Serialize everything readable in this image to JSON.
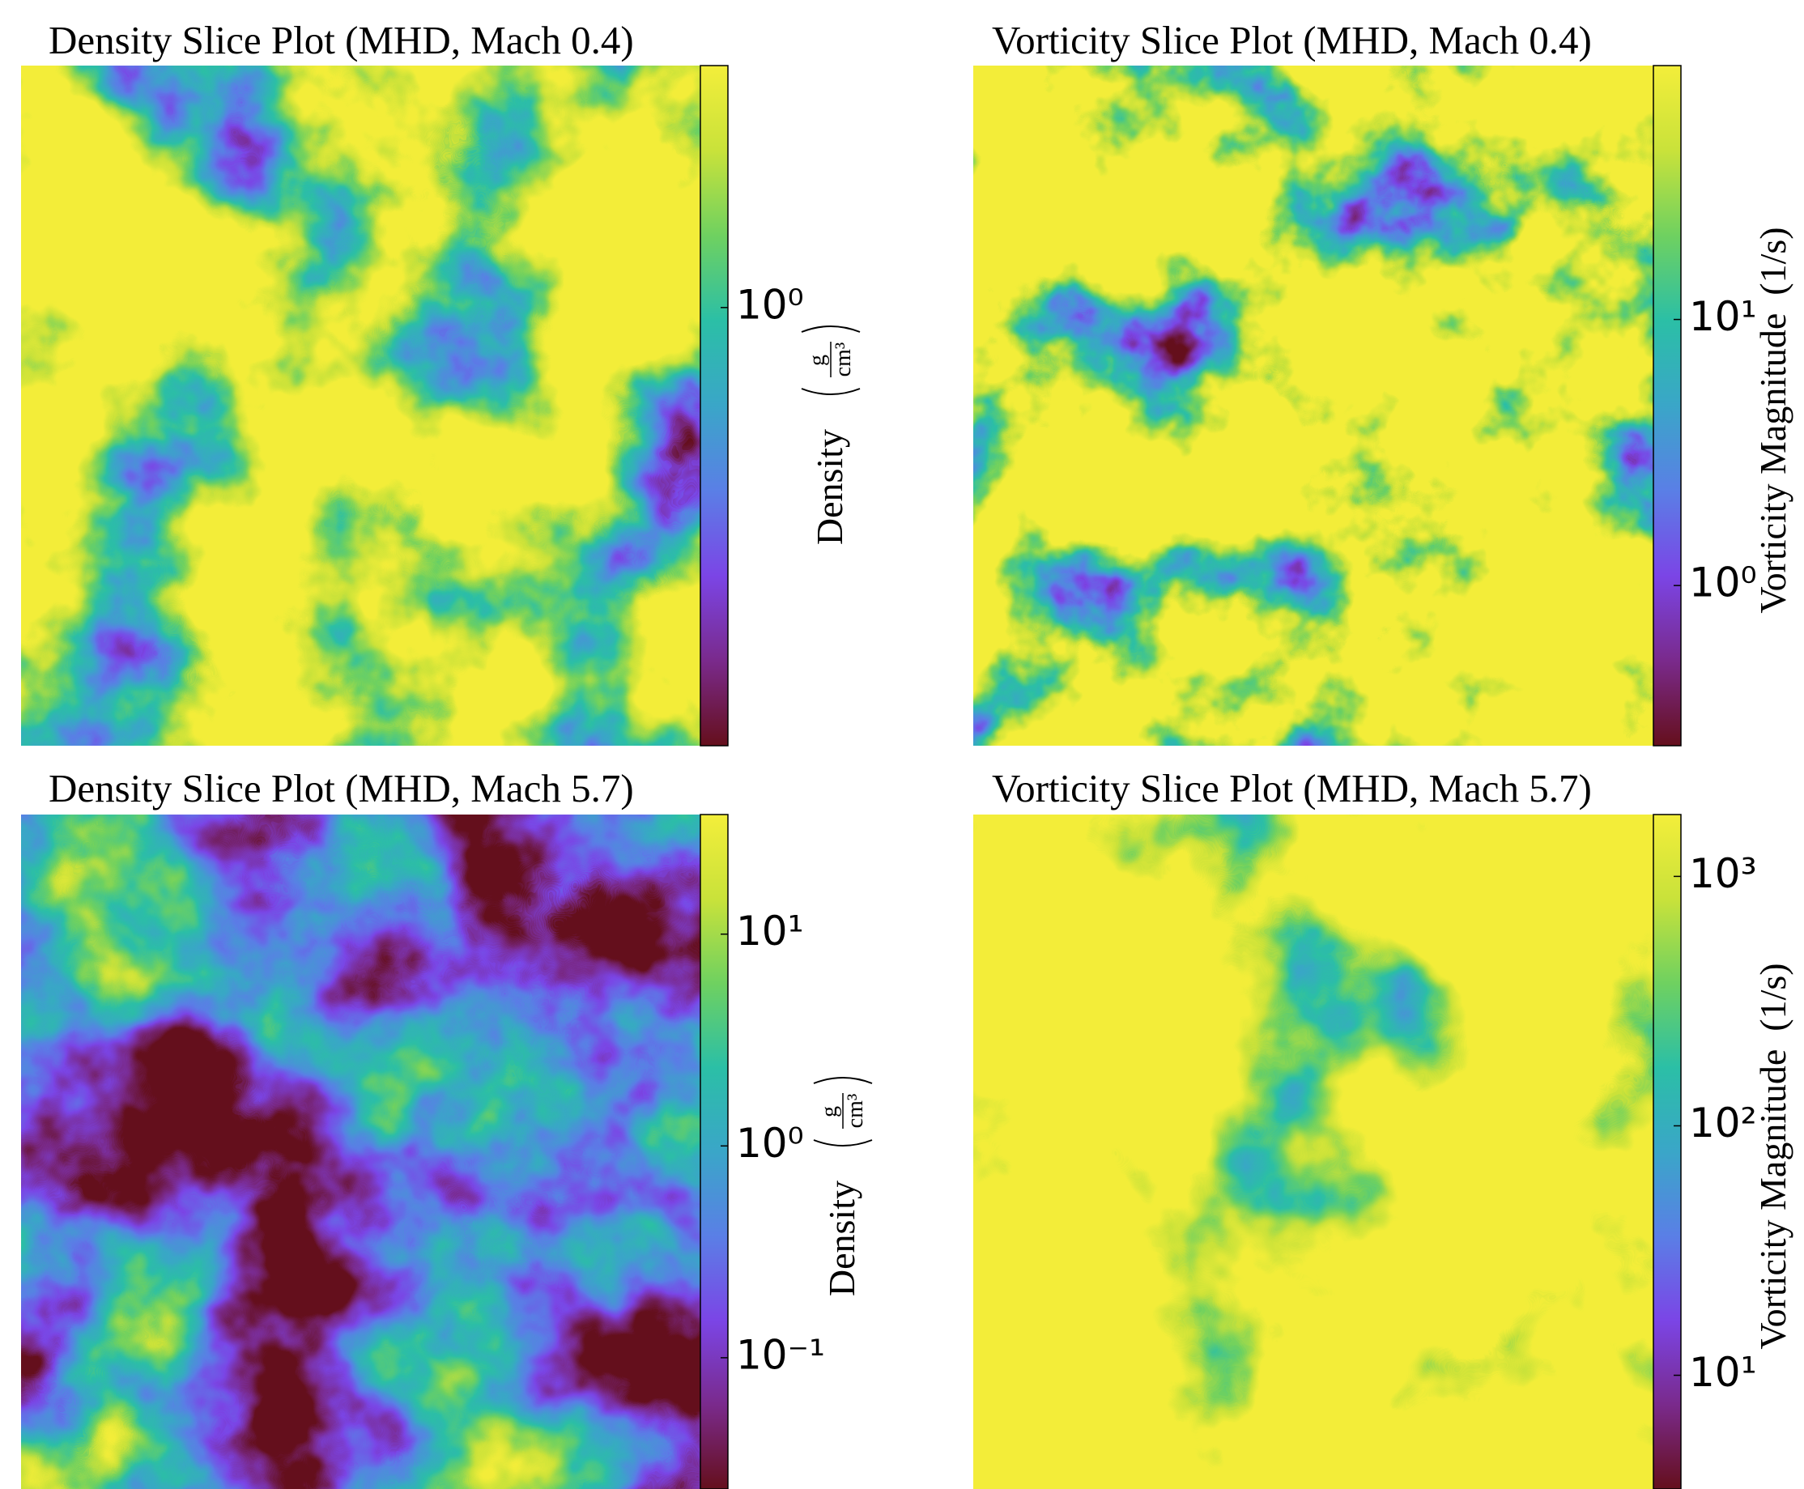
{
  "colormap": [
    "#650f1c",
    "#7a2a8c",
    "#7b45e6",
    "#5a7fe6",
    "#3aa6c8",
    "#2bbfa6",
    "#6fd160",
    "#c9e23a",
    "#f3ee3a"
  ],
  "chart_data": [
    {
      "type": "heatmap",
      "title": "Density Slice Plot (MHD, Mach 0.4)",
      "colorbar_label": "Density",
      "colorbar_unit": {
        "numerator": "g",
        "denominator": "cm³"
      },
      "log_scale": true,
      "clim": [
        0.25,
        2.15
      ],
      "cticks": [
        {
          "value": 1,
          "label": "10⁰"
        }
      ]
    },
    {
      "type": "heatmap",
      "title": "Vorticity Slice Plot (MHD, Mach 0.4)",
      "colorbar_label": "Vorticity Magnitude",
      "colorbar_unit": "(1/s)",
      "log_scale": true,
      "clim": [
        0.25,
        90
      ],
      "cticks": [
        {
          "value": 10,
          "label": "10¹"
        },
        {
          "value": 1,
          "label": "10⁰"
        }
      ]
    },
    {
      "type": "heatmap",
      "title": "Density Slice Plot (MHD, Mach 5.7)",
      "colorbar_label": "Density",
      "colorbar_unit": {
        "numerator": "g",
        "denominator": "cm³"
      },
      "log_scale": true,
      "clim": [
        0.024,
        36.7
      ],
      "cticks": [
        {
          "value": 10,
          "label": "10¹"
        },
        {
          "value": 1,
          "label": "10⁰"
        },
        {
          "value": 0.1,
          "label": "10⁻¹"
        }
      ]
    },
    {
      "type": "heatmap",
      "title": "Vorticity Slice Plot (MHD, Mach 5.7)",
      "colorbar_label": "Vorticity Magnitude",
      "colorbar_unit": "(1/s)",
      "log_scale": true,
      "clim": [
        3.5,
        1770
      ],
      "cticks": [
        {
          "value": 1000,
          "label": "10³"
        },
        {
          "value": 100,
          "label": "10²"
        },
        {
          "value": 10,
          "label": "10¹"
        }
      ]
    }
  ]
}
